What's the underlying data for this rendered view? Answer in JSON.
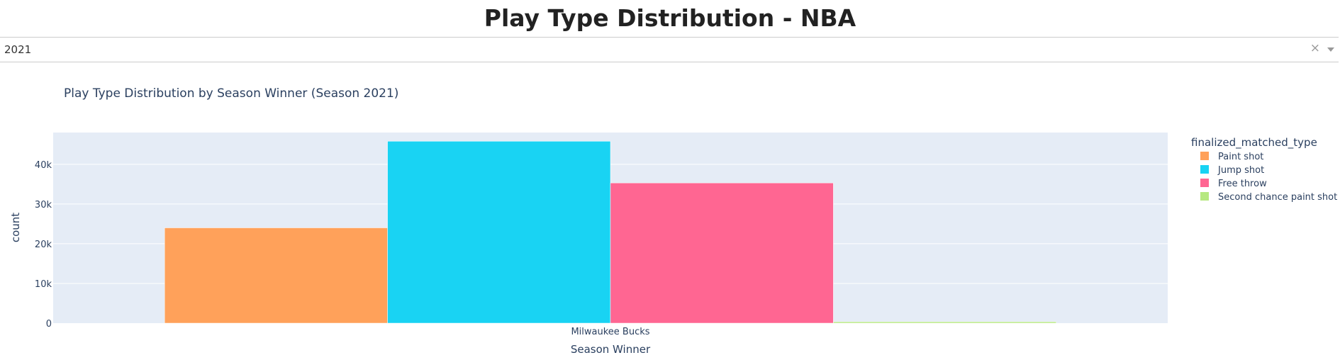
{
  "page": {
    "title": "Play Type Distribution - NBA"
  },
  "season_selector": {
    "value": "2021",
    "clear_glyph": "×",
    "icons": [
      "close-icon",
      "chevron-down-icon"
    ]
  },
  "chart_data": {
    "type": "bar",
    "title": "Play Type Distribution by Season Winner (Season 2021)",
    "xlabel": "Season Winner",
    "ylabel": "count",
    "categories": [
      "Milwaukee Bucks"
    ],
    "ylim": [
      0,
      48000
    ],
    "yticks": [
      0,
      10000,
      20000,
      30000,
      40000
    ],
    "ytick_labels": [
      "0",
      "10k",
      "20k",
      "30k",
      "40k"
    ],
    "barmode": "group",
    "grid": true,
    "legend": {
      "title": "finalized_matched_type",
      "placement": "right"
    },
    "series": [
      {
        "name": "Paint shot",
        "values": [
          24000
        ],
        "color": "#FFA15A"
      },
      {
        "name": "Jump shot",
        "values": [
          45800
        ],
        "color": "#19D3F3"
      },
      {
        "name": "Free throw",
        "values": [
          35300
        ],
        "color": "#FF6692"
      },
      {
        "name": "Second chance paint shot",
        "values": [
          350
        ],
        "color": "#B6E880"
      }
    ],
    "plot_background": "#E5ECF6"
  }
}
